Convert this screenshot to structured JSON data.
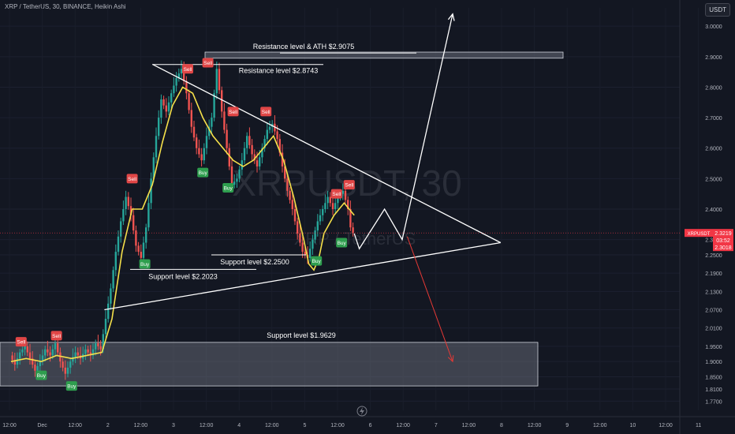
{
  "header": {
    "symbol_line": "XRP / TetherUS, 30, BINANCE, Heikin Ashi",
    "currency": "USDT"
  },
  "watermark": {
    "ticker": "XRPUSDT, 30",
    "name": "XRP / TetherUS"
  },
  "colors": {
    "background": "#131722",
    "bull": "#26a69a",
    "bear": "#ef5350",
    "ma": "#f5e04a",
    "drawing": "#ffffff",
    "zone": "#6a6e7a",
    "sell_tag": "#e04646",
    "buy_tag": "#2e9e4e",
    "down_arrow": "#e53935",
    "price_tag": "#f23645"
  },
  "chart_data": {
    "type": "candlestick",
    "y_axis": {
      "min": 1.74,
      "max": 3.06,
      "ticks": [
        "3.0000",
        "2.9000",
        "2.8000",
        "2.7000",
        "2.6000",
        "2.5000",
        "2.4000",
        "2.3000",
        "2.2500",
        "2.1900",
        "2.1300",
        "2.0700",
        "2.0100",
        "1.9500",
        "1.9000",
        "1.8500",
        "1.8100",
        "1.7700"
      ]
    },
    "x_axis": {
      "labels": [
        "12:00",
        "Dec",
        "12:00",
        "2",
        "12:00",
        "3",
        "12:00",
        "4",
        "12:00",
        "5",
        "12:00",
        "6",
        "12:00",
        "7",
        "12:00",
        "8",
        "12:00",
        "9",
        "12:00",
        "10",
        "12:00",
        "11"
      ]
    },
    "ohlc_path": [
      [
        0,
        1.92
      ],
      [
        2,
        1.89
      ],
      [
        4,
        1.93
      ],
      [
        6,
        1.95
      ],
      [
        8,
        1.91
      ],
      [
        10,
        1.87
      ],
      [
        12,
        1.9
      ],
      [
        14,
        1.94
      ],
      [
        16,
        1.92
      ],
      [
        18,
        1.96
      ],
      [
        20,
        1.9
      ],
      [
        22,
        1.86
      ],
      [
        24,
        1.9
      ],
      [
        26,
        1.93
      ],
      [
        28,
        1.91
      ],
      [
        30,
        1.94
      ],
      [
        32,
        1.92
      ],
      [
        34,
        1.96
      ],
      [
        36,
        1.94
      ],
      [
        38,
        2.04
      ],
      [
        40,
        2.14
      ],
      [
        42,
        2.26
      ],
      [
        44,
        2.36
      ],
      [
        46,
        2.44
      ],
      [
        48,
        2.38
      ],
      [
        50,
        2.28
      ],
      [
        52,
        2.24
      ],
      [
        54,
        2.34
      ],
      [
        56,
        2.5
      ],
      [
        58,
        2.64
      ],
      [
        60,
        2.76
      ],
      [
        62,
        2.72
      ],
      [
        64,
        2.78
      ],
      [
        66,
        2.83
      ],
      [
        68,
        2.86
      ],
      [
        70,
        2.78
      ],
      [
        72,
        2.67
      ],
      [
        74,
        2.6
      ],
      [
        76,
        2.56
      ],
      [
        78,
        2.64
      ],
      [
        80,
        2.7
      ],
      [
        82,
        2.86
      ],
      [
        84,
        2.72
      ],
      [
        86,
        2.6
      ],
      [
        88,
        2.48
      ],
      [
        90,
        2.5
      ],
      [
        92,
        2.56
      ],
      [
        94,
        2.64
      ],
      [
        96,
        2.58
      ],
      [
        98,
        2.54
      ],
      [
        100,
        2.6
      ],
      [
        102,
        2.66
      ],
      [
        104,
        2.68
      ],
      [
        106,
        2.63
      ],
      [
        108,
        2.54
      ],
      [
        110,
        2.46
      ],
      [
        112,
        2.4
      ],
      [
        114,
        2.32
      ],
      [
        116,
        2.26
      ],
      [
        118,
        2.24
      ],
      [
        120,
        2.3
      ],
      [
        122,
        2.36
      ],
      [
        124,
        2.4
      ],
      [
        126,
        2.44
      ],
      [
        128,
        2.4
      ],
      [
        130,
        2.44
      ],
      [
        132,
        2.46
      ],
      [
        134,
        2.4
      ],
      [
        135,
        2.34
      ],
      [
        136,
        2.3219
      ]
    ],
    "moving_average": [
      [
        0,
        1.9
      ],
      [
        6,
        1.91
      ],
      [
        12,
        1.9
      ],
      [
        18,
        1.92
      ],
      [
        24,
        1.91
      ],
      [
        30,
        1.92
      ],
      [
        36,
        1.93
      ],
      [
        40,
        2.04
      ],
      [
        44,
        2.26
      ],
      [
        48,
        2.4
      ],
      [
        52,
        2.4
      ],
      [
        56,
        2.48
      ],
      [
        60,
        2.62
      ],
      [
        64,
        2.74
      ],
      [
        68,
        2.8
      ],
      [
        72,
        2.78
      ],
      [
        76,
        2.7
      ],
      [
        80,
        2.64
      ],
      [
        84,
        2.6
      ],
      [
        88,
        2.56
      ],
      [
        92,
        2.54
      ],
      [
        96,
        2.56
      ],
      [
        100,
        2.6
      ],
      [
        104,
        2.64
      ],
      [
        108,
        2.56
      ],
      [
        112,
        2.44
      ],
      [
        116,
        2.3
      ],
      [
        118,
        2.22
      ],
      [
        120,
        2.2
      ],
      [
        122,
        2.24
      ],
      [
        124,
        2.32
      ],
      [
        128,
        2.38
      ],
      [
        132,
        2.42
      ],
      [
        136,
        2.38
      ]
    ],
    "last_price": "2.3219",
    "countdown": "03:52",
    "secondary_price": "2.3018",
    "price_tag_label": "XRPUSDT",
    "levels": [
      {
        "label": "Resistance level & ATH $2.9075",
        "price": 2.9075,
        "kind": "zone-thin"
      },
      {
        "label": "Resistance level $2.8743",
        "price": 2.8743,
        "kind": "line"
      },
      {
        "label": "Support level $2.2500",
        "price": 2.25,
        "kind": "line"
      },
      {
        "label": "Support level $2.2023",
        "price": 2.2023,
        "kind": "line"
      },
      {
        "label": "Support level $1.9629",
        "price": 1.9629,
        "kind": "zone"
      }
    ],
    "signals": [
      {
        "text": "Sell",
        "type": "sell",
        "x": 4,
        "y": 1.965
      },
      {
        "text": "Sell",
        "type": "sell",
        "x": 18,
        "y": 1.985
      },
      {
        "text": "Buy",
        "type": "buy",
        "x": 12,
        "y": 1.855
      },
      {
        "text": "Buy",
        "type": "buy",
        "x": 24,
        "y": 1.82
      },
      {
        "text": "Sell",
        "type": "sell",
        "x": 48,
        "y": 2.5
      },
      {
        "text": "Buy",
        "type": "buy",
        "x": 53,
        "y": 2.22
      },
      {
        "text": "Sell",
        "type": "sell",
        "x": 70,
        "y": 2.86
      },
      {
        "text": "Sell",
        "type": "sell",
        "x": 78,
        "y": 2.88
      },
      {
        "text": "Buy",
        "type": "buy",
        "x": 76,
        "y": 2.52
      },
      {
        "text": "Buy",
        "type": "buy",
        "x": 86,
        "y": 2.47
      },
      {
        "text": "Sell",
        "type": "sell",
        "x": 88,
        "y": 2.72
      },
      {
        "text": "Sell",
        "type": "sell",
        "x": 101,
        "y": 2.72
      },
      {
        "text": "Buy",
        "type": "buy",
        "x": 121,
        "y": 2.23
      },
      {
        "text": "Sell",
        "type": "sell",
        "x": 129,
        "y": 2.45
      },
      {
        "text": "Sell",
        "type": "sell",
        "x": 134,
        "y": 2.48
      },
      {
        "text": "Buy",
        "type": "buy",
        "x": 131,
        "y": 2.29
      }
    ],
    "triangle": {
      "apex_top": [
        56,
        2.875
      ],
      "apex_bottom": [
        37,
        2.07
      ],
      "tip": [
        194,
        2.29
      ]
    },
    "projection_path": [
      [
        136,
        2.32
      ],
      [
        138,
        2.27
      ],
      [
        148,
        2.4
      ],
      [
        155,
        2.3
      ],
      [
        175,
        3.04
      ]
    ],
    "down_arrow": [
      [
        157,
        2.31
      ],
      [
        175,
        1.9
      ]
    ]
  }
}
